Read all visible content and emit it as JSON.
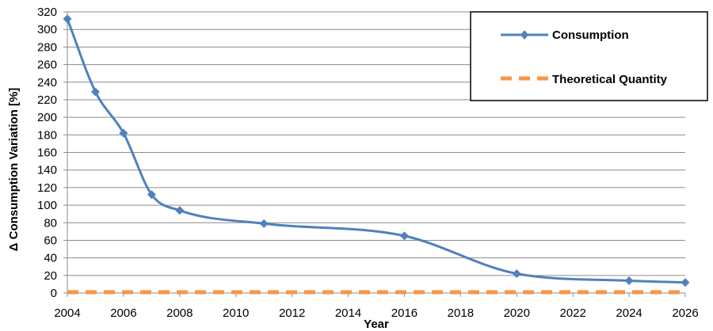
{
  "chart_data": {
    "type": "line",
    "title": "",
    "xlabel": "Year",
    "ylabel": "Δ Consumption Variation [%]",
    "xlim": [
      2004,
      2026
    ],
    "ylim": [
      0,
      320
    ],
    "x_ticks": [
      2004,
      2006,
      2008,
      2010,
      2012,
      2014,
      2016,
      2018,
      2020,
      2022,
      2024,
      2026
    ],
    "y_ticks": [
      0,
      20,
      40,
      60,
      80,
      100,
      120,
      140,
      160,
      180,
      200,
      220,
      240,
      260,
      280,
      300,
      320
    ],
    "grid": "horizontal",
    "legend_position": "top-right",
    "series": [
      {
        "name": "Consumption",
        "color": "#4f81bd",
        "marker": "diamond",
        "style": "solid-smooth",
        "x": [
          2004,
          2005,
          2006,
          2007,
          2008,
          2011,
          2016,
          2020,
          2024,
          2026
        ],
        "y": [
          312,
          229,
          182,
          112,
          94,
          79,
          65,
          22,
          14,
          12
        ]
      },
      {
        "name": "Theoretical Quantity",
        "color": "#f79646",
        "marker": "none",
        "style": "dashed",
        "x": [
          2004,
          2026
        ],
        "y": [
          0,
          0
        ]
      }
    ]
  }
}
